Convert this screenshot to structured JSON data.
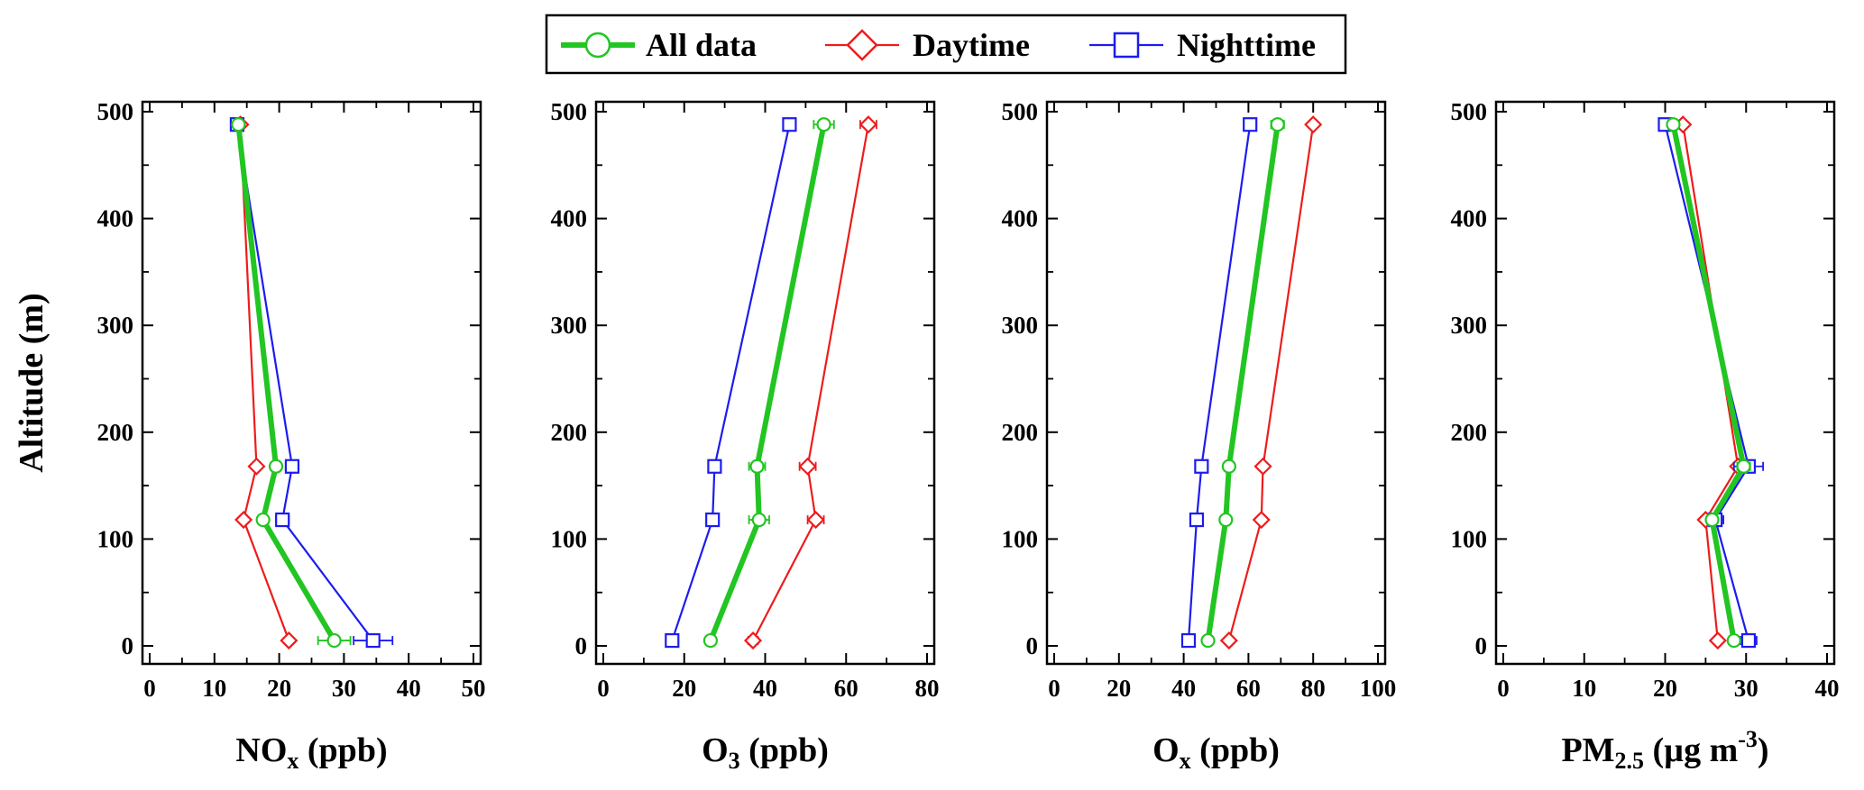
{
  "legend": {
    "entries": [
      {
        "label": "All data",
        "color": "#22c522",
        "marker": "circle"
      },
      {
        "label": "Daytime",
        "color": "#ee1c1c",
        "marker": "diamond"
      },
      {
        "label": "Nighttime",
        "color": "#1c1cee",
        "marker": "square"
      }
    ]
  },
  "chart_data": [
    {
      "type": "line",
      "xlabel": {
        "main": "NO",
        "sub": "x",
        "rest": " (ppb)"
      },
      "ylabel": "Altitude (m)",
      "xlim": [
        0,
        50
      ],
      "xticks": [
        0,
        10,
        20,
        30,
        40,
        50
      ],
      "xminor": 5,
      "ylim": [
        0,
        500
      ],
      "yticks": [
        0,
        100,
        200,
        300,
        400,
        500
      ],
      "yminor": 50,
      "altitudes": [
        5,
        118,
        168,
        488
      ],
      "series": [
        {
          "name": "Daytime",
          "values": [
            21.5,
            14.5,
            16.5,
            14
          ]
        },
        {
          "name": "Nighttime",
          "values": [
            34.5,
            20.5,
            22,
            13.5
          ],
          "err": [
            3,
            1,
            1,
            0.5
          ]
        },
        {
          "name": "All data",
          "values": [
            28.5,
            17.5,
            19.5,
            13.7
          ],
          "err": [
            2.5,
            0.7,
            0.7,
            0.3
          ]
        }
      ]
    },
    {
      "type": "line",
      "xlabel": {
        "main": "O",
        "sub": "3",
        "rest": " (ppb)"
      },
      "xlim": [
        0,
        80
      ],
      "xticks": [
        0,
        20,
        40,
        60,
        80
      ],
      "xminor": 10,
      "ylim": [
        0,
        500
      ],
      "yticks": [
        0,
        100,
        200,
        300,
        400,
        500
      ],
      "yminor": 50,
      "altitudes": [
        5,
        118,
        168,
        488
      ],
      "series": [
        {
          "name": "Daytime",
          "values": [
            37,
            52.5,
            50.5,
            65.5
          ],
          "err": [
            1.2,
            2,
            2,
            2
          ]
        },
        {
          "name": "Nighttime",
          "values": [
            17,
            27,
            27.5,
            46
          ],
          "err": [
            1,
            1,
            1,
            1
          ]
        },
        {
          "name": "All data",
          "values": [
            26.5,
            38.5,
            38,
            54.5
          ],
          "err": [
            1.2,
            2.5,
            2,
            2.5
          ]
        }
      ]
    },
    {
      "type": "line",
      "xlabel": {
        "main": "O",
        "sub": "x",
        "rest": " (ppb)"
      },
      "xlim": [
        0,
        100
      ],
      "xticks": [
        0,
        20,
        40,
        60,
        80,
        100
      ],
      "xminor": 10,
      "ylim": [
        0,
        500
      ],
      "yticks": [
        0,
        100,
        200,
        300,
        400,
        500
      ],
      "yminor": 50,
      "altitudes": [
        5,
        118,
        168,
        488
      ],
      "series": [
        {
          "name": "Daytime",
          "values": [
            54,
            64,
            64.5,
            80
          ],
          "err": [
            0.5,
            0.5,
            0.5,
            0.5
          ]
        },
        {
          "name": "Nighttime",
          "values": [
            41.5,
            44,
            45.5,
            60.5
          ],
          "err": [
            0.5,
            0.5,
            0.5,
            0.5
          ]
        },
        {
          "name": "All data",
          "values": [
            47.5,
            53,
            54,
            69
          ],
          "err": [
            0.5,
            1,
            1,
            2
          ]
        }
      ]
    },
    {
      "type": "line",
      "xlabel": {
        "main": "PM",
        "sub": "2.5",
        "rest": " (µg m",
        "sup": "-3",
        "close": ")"
      },
      "xlim": [
        0,
        40
      ],
      "xticks": [
        0,
        10,
        20,
        30,
        40
      ],
      "xminor": 5,
      "ylim": [
        0,
        500
      ],
      "yticks": [
        0,
        100,
        200,
        300,
        400,
        500
      ],
      "yminor": 50,
      "altitudes": [
        5,
        118,
        168,
        488
      ],
      "series": [
        {
          "name": "Daytime",
          "values": [
            26.5,
            25,
            29,
            22.2
          ]
        },
        {
          "name": "Nighttime",
          "values": [
            30.3,
            26.2,
            30.3,
            20
          ],
          "err": [
            1,
            1,
            1.8,
            0.5
          ]
        },
        {
          "name": "All data",
          "values": [
            28.5,
            25.8,
            29.7,
            21
          ],
          "err": [
            0.6,
            0.6,
            0.8,
            0.3
          ]
        }
      ]
    }
  ]
}
